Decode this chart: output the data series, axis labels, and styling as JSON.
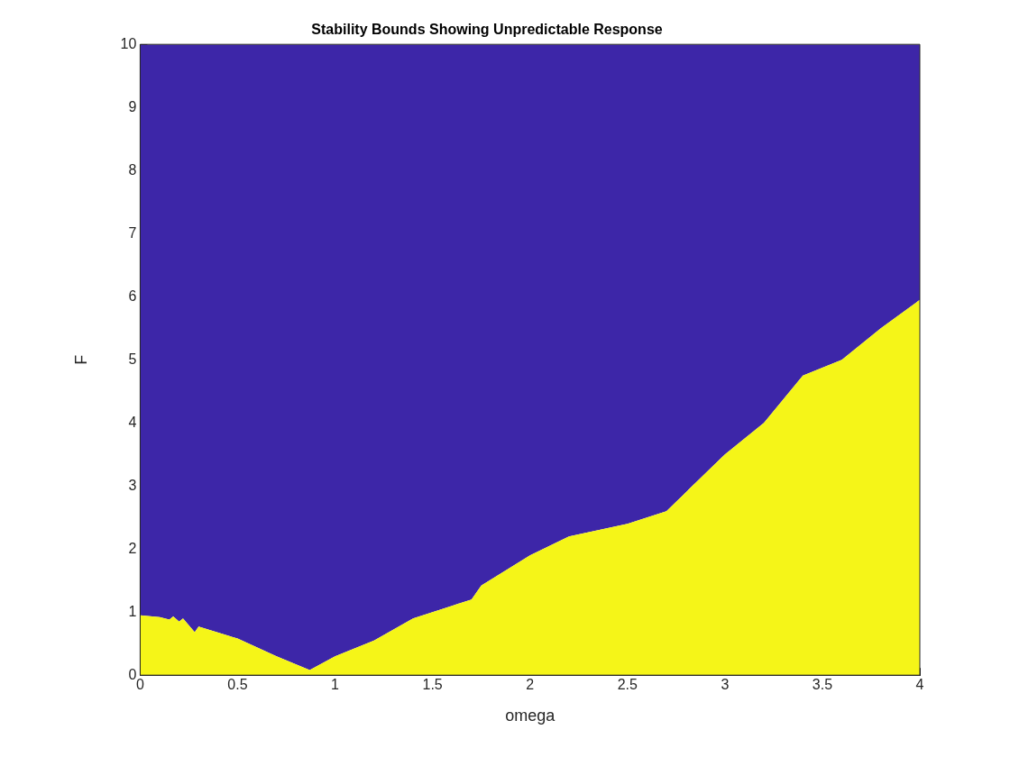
{
  "chart_data": {
    "type": "area",
    "title": "Stability Bounds Showing Unpredictable Response",
    "xlabel": "omega",
    "ylabel": "F",
    "stacked": true,
    "x": [
      0,
      0.1,
      0.15,
      0.17,
      0.2,
      0.22,
      0.28,
      0.3,
      0.5,
      0.7,
      0.87,
      1.0,
      1.2,
      1.4,
      1.6,
      1.7,
      1.75,
      2.0,
      2.2,
      2.5,
      2.7,
      3.0,
      3.2,
      3.4,
      3.6,
      3.8,
      4.0
    ],
    "series": [
      {
        "color": "#f5f518",
        "values": [
          0.95,
          0.92,
          0.88,
          0.93,
          0.85,
          0.9,
          0.68,
          0.77,
          0.58,
          0.3,
          0.08,
          0.3,
          0.55,
          0.9,
          1.1,
          1.2,
          1.42,
          1.9,
          2.2,
          2.4,
          2.6,
          3.5,
          4.0,
          4.75,
          5.0,
          5.5,
          5.95
        ]
      },
      {
        "color": "#3d26a8",
        "values": [
          9.05,
          9.08,
          9.12,
          9.07,
          9.15,
          9.1,
          9.32,
          9.23,
          9.42,
          9.7,
          9.92,
          9.7,
          9.45,
          9.1,
          8.9,
          8.8,
          8.58,
          8.1,
          7.8,
          7.6,
          7.4,
          6.5,
          6.0,
          5.25,
          5.0,
          4.5,
          4.05
        ]
      }
    ],
    "xlim": [
      0,
      4
    ],
    "xticks": [
      0,
      0.5,
      1,
      1.5,
      2,
      2.5,
      3,
      3.5,
      4
    ],
    "ylim": [
      0,
      10
    ],
    "yticks": [
      0,
      1,
      2,
      3,
      4,
      5,
      6,
      7,
      8,
      9,
      10
    ],
    "grid": false,
    "legend": false,
    "marker": "none"
  }
}
